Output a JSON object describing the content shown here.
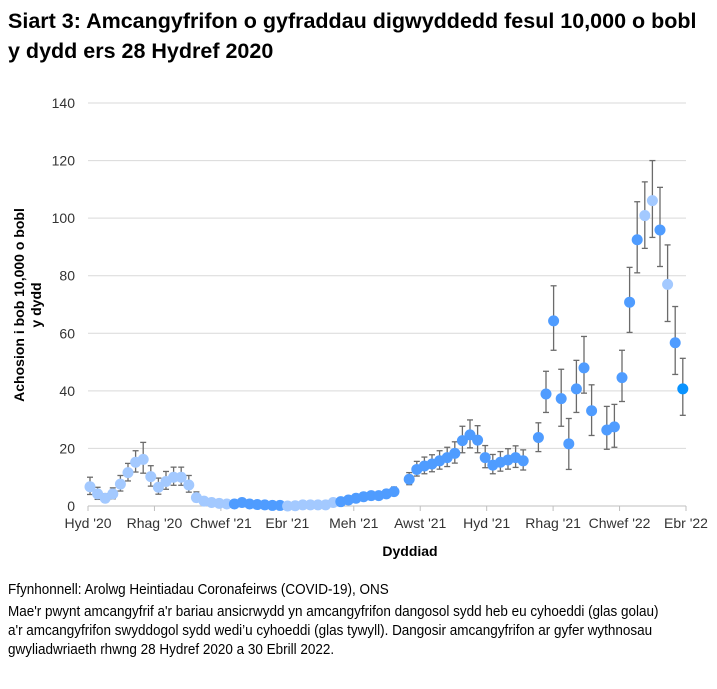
{
  "title": "Siart 3: Amcangyfrifon o gyfraddau digwyddedd fesul 10,000 o bobl y dydd ers 28 Hydref 2020",
  "footer": {
    "source": "Ffynhonnell: Arolwg Heintiadau Coronafeirws (COVID-19), ONS",
    "note": "Mae'r pwynt amcangyfrif a'r bariau ansicrwydd yn amcangyfrifon dangosol sydd heb eu cyhoeddi (glas golau) a'r amcangyfrifon swyddogol sydd wedi’u cyhoeddi (glas tywyll). Dangosir amcangyfrifon ar gyfer wythnosau gwyliadwriaeth rhwng 28 Hydref 2020 a 30 Ebrill 2022."
  },
  "chart_data": {
    "type": "scatter",
    "title": "",
    "xlabel": "Dyddiad",
    "ylabel": "Achosion i bob 10,000 o bobl y dydd",
    "ylim": [
      0,
      140
    ],
    "yticks": [
      0,
      20,
      40,
      60,
      80,
      100,
      120,
      140
    ],
    "xticks": [
      "Hyd '20",
      "Rhag '20",
      "Chwef '21",
      "Ebr '21",
      "Meh '21",
      "Awst '21",
      "Hyd '21",
      "Rhag '21",
      "Chwef '22",
      "Ebr '22"
    ],
    "grid": "horizontal",
    "legend": "none",
    "colors": {
      "unpublished": "#a3c9ff",
      "published": "#4f9cff",
      "latest": "#0a93ff",
      "error_bar": "#6b6b6b",
      "grid": "#d9d9d9"
    },
    "dates": [
      "2020-10-28",
      "2020-11-04",
      "2020-11-11",
      "2020-11-18",
      "2020-11-25",
      "2020-12-02",
      "2020-12-09",
      "2020-12-16",
      "2020-12-23",
      "2020-12-30",
      "2021-01-06",
      "2021-01-13",
      "2021-01-20",
      "2021-01-27",
      "2021-02-03",
      "2021-02-10",
      "2021-02-17",
      "2021-02-24",
      "2021-03-03",
      "2021-03-10",
      "2021-03-17",
      "2021-03-24",
      "2021-03-31",
      "2021-04-07",
      "2021-04-14",
      "2021-04-21",
      "2021-04-28",
      "2021-05-05",
      "2021-05-12",
      "2021-05-19",
      "2021-05-26",
      "2021-06-02",
      "2021-06-09",
      "2021-06-16",
      "2021-06-23",
      "2021-06-30",
      "2021-07-07",
      "2021-07-14",
      "2021-07-21",
      "2021-07-28",
      "2021-08-04",
      "2021-08-18",
      "2021-08-25",
      "2021-09-01",
      "2021-09-08",
      "2021-09-15",
      "2021-09-22",
      "2021-09-29",
      "2021-10-06",
      "2021-10-13",
      "2021-10-20",
      "2021-10-27",
      "2021-11-03",
      "2021-11-10",
      "2021-11-17",
      "2021-11-24",
      "2021-12-01",
      "2021-12-15",
      "2021-12-22",
      "2021-12-29",
      "2022-01-05",
      "2022-01-12",
      "2022-01-19",
      "2022-01-26",
      "2022-02-02",
      "2022-02-16",
      "2022-02-23",
      "2022-03-02",
      "2022-03-09",
      "2022-03-16",
      "2022-03-23",
      "2022-03-30",
      "2022-04-06",
      "2022-04-13",
      "2022-04-20",
      "2022-04-27"
    ],
    "values": [
      6.7,
      4.2,
      2.7,
      4.2,
      7.6,
      11.6,
      15.2,
      16.2,
      10.2,
      6.5,
      8.5,
      10.0,
      10.0,
      7.3,
      2.9,
      1.7,
      1.2,
      0.9,
      0.7,
      0.7,
      1.2,
      0.7,
      0.5,
      0.4,
      0.2,
      0.2,
      0.0,
      0.1,
      0.4,
      0.4,
      0.4,
      0.4,
      1.2,
      1.5,
      2.1,
      2.7,
      3.2,
      3.6,
      3.6,
      4.2,
      5.0,
      9.3,
      12.7,
      13.9,
      14.6,
      15.7,
      16.8,
      18.3,
      22.7,
      24.7,
      22.9,
      16.8,
      14.2,
      15.2,
      16.0,
      16.8,
      15.7,
      23.8,
      38.9,
      64.3,
      37.3,
      21.6,
      40.7,
      48.0,
      33.1,
      26.4,
      27.5,
      44.6,
      70.8,
      92.5,
      100.9,
      106.1,
      95.9,
      77.0,
      56.7,
      40.7
    ],
    "lower": [
      4.0,
      2.3,
      1.3,
      2.5,
      5.2,
      8.7,
      11.8,
      11.4,
      6.9,
      4.1,
      5.8,
      7.2,
      7.2,
      4.8,
      1.5,
      0.9,
      0.6,
      0.5,
      0.4,
      0.4,
      0.7,
      0.4,
      0.3,
      0.2,
      0.1,
      0.1,
      0.0,
      0.0,
      0.2,
      0.2,
      0.2,
      0.2,
      0.7,
      0.9,
      1.4,
      1.9,
      2.3,
      2.6,
      2.7,
      3.1,
      3.7,
      7.4,
      10.4,
      11.2,
      11.9,
      12.8,
      13.7,
      14.9,
      18.5,
      20.2,
      18.5,
      13.3,
      11.2,
      12.1,
      12.8,
      13.4,
      12.5,
      18.9,
      32.5,
      54.1,
      27.7,
      12.7,
      32.5,
      39.2,
      24.5,
      19.7,
      20.4,
      36.3,
      60.3,
      81.0,
      89.5,
      93.3,
      83.2,
      64.1,
      45.7,
      31.5
    ],
    "upper": [
      10.0,
      6.5,
      4.3,
      6.3,
      10.6,
      14.8,
      19.2,
      22.1,
      14.0,
      9.7,
      12.0,
      13.5,
      13.5,
      10.6,
      4.9,
      2.9,
      2.1,
      1.6,
      1.3,
      1.3,
      2.0,
      1.2,
      0.9,
      0.8,
      0.5,
      0.5,
      0.2,
      0.3,
      0.8,
      0.8,
      0.8,
      0.8,
      2.0,
      2.4,
      3.1,
      3.8,
      4.4,
      4.9,
      4.8,
      5.6,
      6.6,
      11.6,
      15.5,
      17.0,
      17.8,
      19.2,
      20.4,
      22.3,
      27.7,
      29.9,
      27.9,
      21.0,
      17.9,
      18.9,
      19.9,
      20.9,
      19.5,
      28.9,
      46.8,
      76.5,
      47.5,
      30.4,
      50.6,
      58.9,
      42.1,
      34.6,
      35.3,
      54.1,
      82.9,
      105.7,
      112.6,
      120.0,
      110.7,
      90.7,
      69.3,
      51.3
    ],
    "status": [
      "unpublished",
      "unpublished",
      "unpublished",
      "unpublished",
      "unpublished",
      "unpublished",
      "unpublished",
      "unpublished",
      "unpublished",
      "unpublished",
      "unpublished",
      "unpublished",
      "unpublished",
      "unpublished",
      "unpublished",
      "unpublished",
      "unpublished",
      "unpublished",
      "unpublished",
      "published",
      "published",
      "published",
      "published",
      "published",
      "published",
      "published",
      "unpublished",
      "unpublished",
      "unpublished",
      "unpublished",
      "unpublished",
      "unpublished",
      "unpublished",
      "published",
      "published",
      "published",
      "published",
      "published",
      "published",
      "published",
      "published",
      "published",
      "published",
      "published",
      "published",
      "published",
      "published",
      "published",
      "published",
      "published",
      "published",
      "published",
      "published",
      "published",
      "published",
      "published",
      "published",
      "published",
      "published",
      "published",
      "published",
      "published",
      "published",
      "published",
      "published",
      "published",
      "published",
      "published",
      "published",
      "published",
      "unpublished",
      "unpublished",
      "published",
      "unpublished",
      "published",
      "latest"
    ]
  }
}
